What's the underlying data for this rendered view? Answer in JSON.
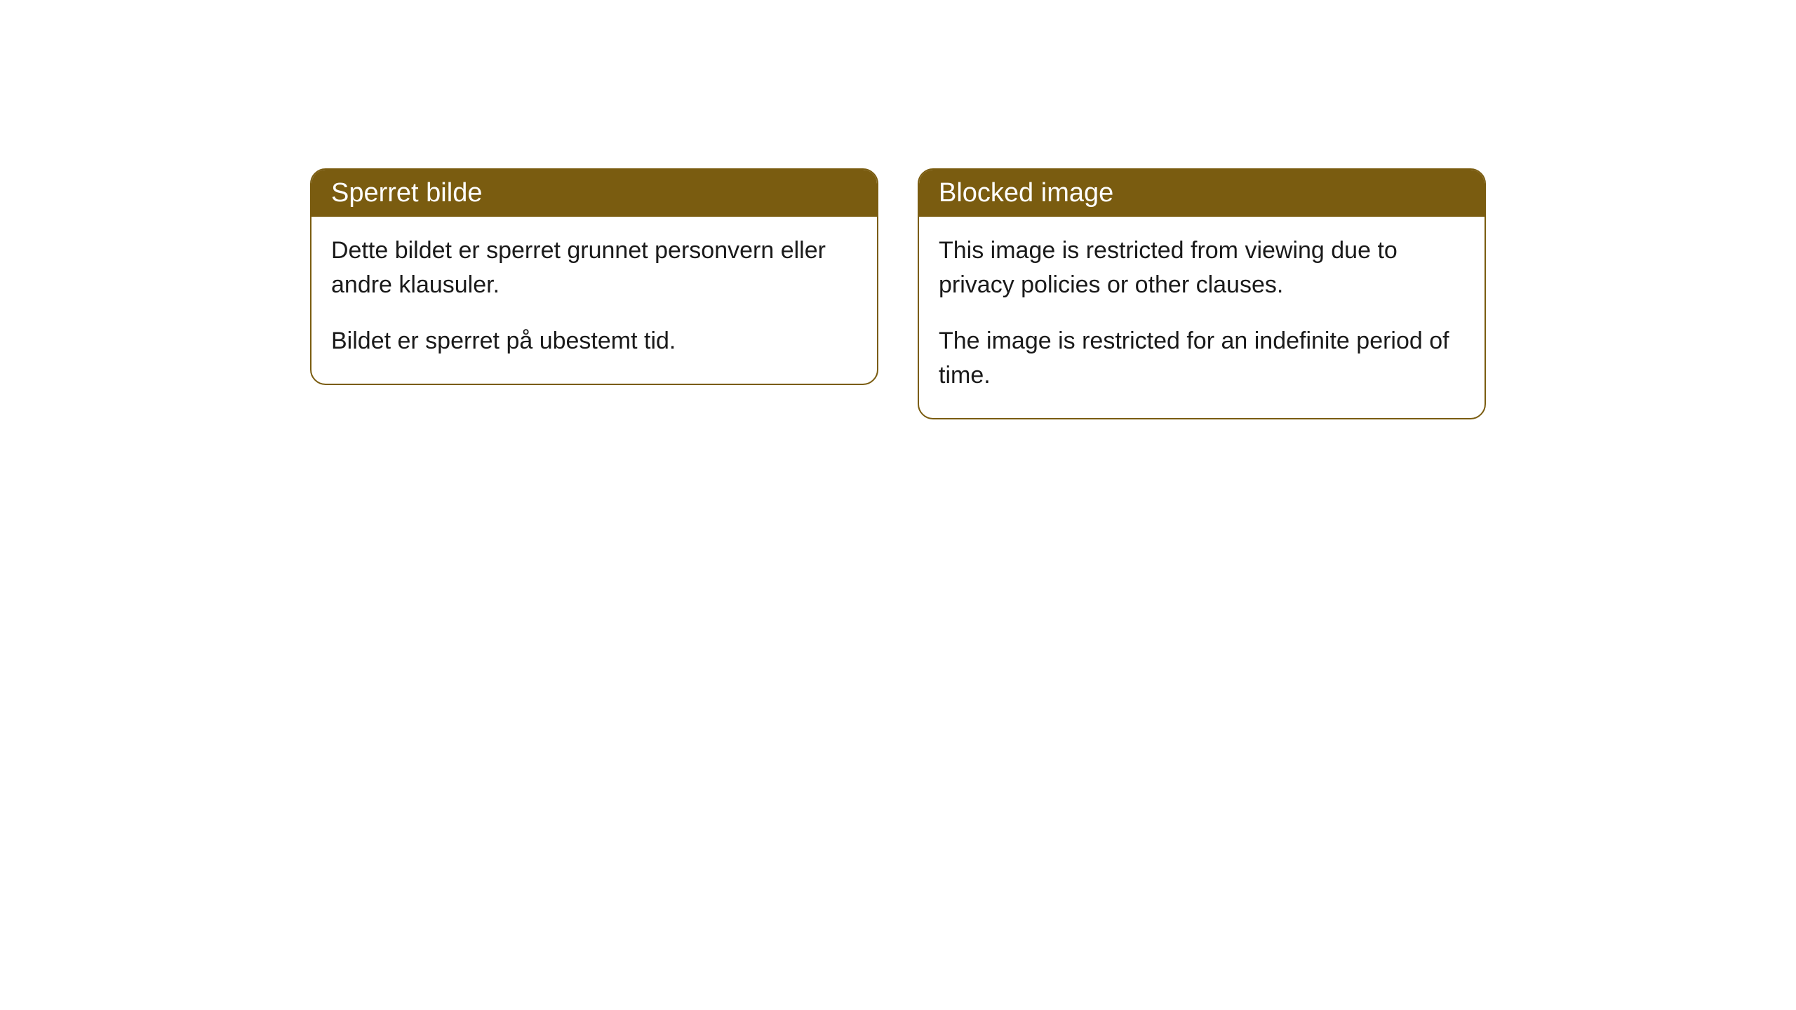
{
  "cards": {
    "norwegian": {
      "title": "Sperret bilde",
      "paragraph1": "Dette bildet er sperret grunnet personvern eller andre klausuler.",
      "paragraph2": "Bildet er sperret på ubestemt tid."
    },
    "english": {
      "title": "Blocked image",
      "paragraph1": "This image is restricted from viewing due to privacy policies or other clauses.",
      "paragraph2": "The image is restricted for an indefinite period of time."
    }
  },
  "style": {
    "header_bg": "#7a5c10",
    "header_text": "#ffffff",
    "border_color": "#7a5c10",
    "body_bg": "#ffffff",
    "body_text": "#1a1a1a",
    "border_radius": 22,
    "header_fontsize": 38,
    "body_fontsize": 34
  }
}
